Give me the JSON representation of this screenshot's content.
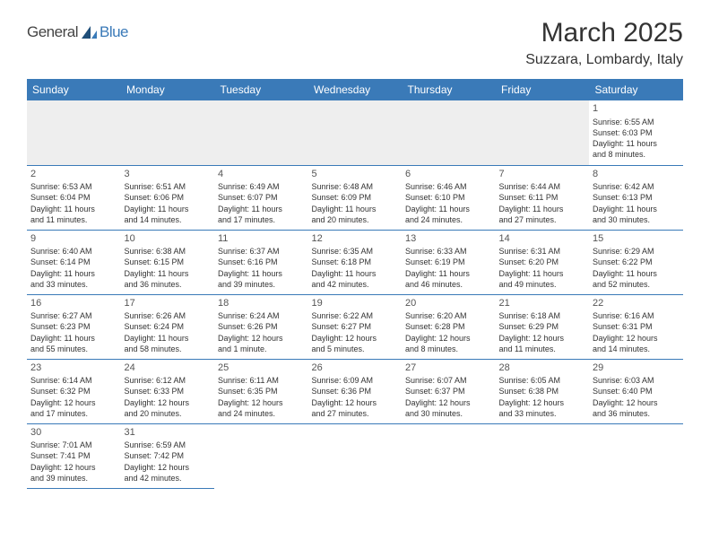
{
  "brand": {
    "part1": "General",
    "part2": "Blue"
  },
  "title": "March 2025",
  "location": "Suzzara, Lombardy, Italy",
  "colors": {
    "header_bg": "#3a7ab8",
    "header_fg": "#ffffff",
    "grid_line": "#3a7ab8",
    "empty_bg": "#eeeeee"
  },
  "columns": [
    "Sunday",
    "Monday",
    "Tuesday",
    "Wednesday",
    "Thursday",
    "Friday",
    "Saturday"
  ],
  "weeks": [
    [
      null,
      null,
      null,
      null,
      null,
      null,
      {
        "n": "1",
        "sr": "Sunrise: 6:55 AM",
        "ss": "Sunset: 6:03 PM",
        "d1": "Daylight: 11 hours",
        "d2": "and 8 minutes."
      }
    ],
    [
      {
        "n": "2",
        "sr": "Sunrise: 6:53 AM",
        "ss": "Sunset: 6:04 PM",
        "d1": "Daylight: 11 hours",
        "d2": "and 11 minutes."
      },
      {
        "n": "3",
        "sr": "Sunrise: 6:51 AM",
        "ss": "Sunset: 6:06 PM",
        "d1": "Daylight: 11 hours",
        "d2": "and 14 minutes."
      },
      {
        "n": "4",
        "sr": "Sunrise: 6:49 AM",
        "ss": "Sunset: 6:07 PM",
        "d1": "Daylight: 11 hours",
        "d2": "and 17 minutes."
      },
      {
        "n": "5",
        "sr": "Sunrise: 6:48 AM",
        "ss": "Sunset: 6:09 PM",
        "d1": "Daylight: 11 hours",
        "d2": "and 20 minutes."
      },
      {
        "n": "6",
        "sr": "Sunrise: 6:46 AM",
        "ss": "Sunset: 6:10 PM",
        "d1": "Daylight: 11 hours",
        "d2": "and 24 minutes."
      },
      {
        "n": "7",
        "sr": "Sunrise: 6:44 AM",
        "ss": "Sunset: 6:11 PM",
        "d1": "Daylight: 11 hours",
        "d2": "and 27 minutes."
      },
      {
        "n": "8",
        "sr": "Sunrise: 6:42 AM",
        "ss": "Sunset: 6:13 PM",
        "d1": "Daylight: 11 hours",
        "d2": "and 30 minutes."
      }
    ],
    [
      {
        "n": "9",
        "sr": "Sunrise: 6:40 AM",
        "ss": "Sunset: 6:14 PM",
        "d1": "Daylight: 11 hours",
        "d2": "and 33 minutes."
      },
      {
        "n": "10",
        "sr": "Sunrise: 6:38 AM",
        "ss": "Sunset: 6:15 PM",
        "d1": "Daylight: 11 hours",
        "d2": "and 36 minutes."
      },
      {
        "n": "11",
        "sr": "Sunrise: 6:37 AM",
        "ss": "Sunset: 6:16 PM",
        "d1": "Daylight: 11 hours",
        "d2": "and 39 minutes."
      },
      {
        "n": "12",
        "sr": "Sunrise: 6:35 AM",
        "ss": "Sunset: 6:18 PM",
        "d1": "Daylight: 11 hours",
        "d2": "and 42 minutes."
      },
      {
        "n": "13",
        "sr": "Sunrise: 6:33 AM",
        "ss": "Sunset: 6:19 PM",
        "d1": "Daylight: 11 hours",
        "d2": "and 46 minutes."
      },
      {
        "n": "14",
        "sr": "Sunrise: 6:31 AM",
        "ss": "Sunset: 6:20 PM",
        "d1": "Daylight: 11 hours",
        "d2": "and 49 minutes."
      },
      {
        "n": "15",
        "sr": "Sunrise: 6:29 AM",
        "ss": "Sunset: 6:22 PM",
        "d1": "Daylight: 11 hours",
        "d2": "and 52 minutes."
      }
    ],
    [
      {
        "n": "16",
        "sr": "Sunrise: 6:27 AM",
        "ss": "Sunset: 6:23 PM",
        "d1": "Daylight: 11 hours",
        "d2": "and 55 minutes."
      },
      {
        "n": "17",
        "sr": "Sunrise: 6:26 AM",
        "ss": "Sunset: 6:24 PM",
        "d1": "Daylight: 11 hours",
        "d2": "and 58 minutes."
      },
      {
        "n": "18",
        "sr": "Sunrise: 6:24 AM",
        "ss": "Sunset: 6:26 PM",
        "d1": "Daylight: 12 hours",
        "d2": "and 1 minute."
      },
      {
        "n": "19",
        "sr": "Sunrise: 6:22 AM",
        "ss": "Sunset: 6:27 PM",
        "d1": "Daylight: 12 hours",
        "d2": "and 5 minutes."
      },
      {
        "n": "20",
        "sr": "Sunrise: 6:20 AM",
        "ss": "Sunset: 6:28 PM",
        "d1": "Daylight: 12 hours",
        "d2": "and 8 minutes."
      },
      {
        "n": "21",
        "sr": "Sunrise: 6:18 AM",
        "ss": "Sunset: 6:29 PM",
        "d1": "Daylight: 12 hours",
        "d2": "and 11 minutes."
      },
      {
        "n": "22",
        "sr": "Sunrise: 6:16 AM",
        "ss": "Sunset: 6:31 PM",
        "d1": "Daylight: 12 hours",
        "d2": "and 14 minutes."
      }
    ],
    [
      {
        "n": "23",
        "sr": "Sunrise: 6:14 AM",
        "ss": "Sunset: 6:32 PM",
        "d1": "Daylight: 12 hours",
        "d2": "and 17 minutes."
      },
      {
        "n": "24",
        "sr": "Sunrise: 6:12 AM",
        "ss": "Sunset: 6:33 PM",
        "d1": "Daylight: 12 hours",
        "d2": "and 20 minutes."
      },
      {
        "n": "25",
        "sr": "Sunrise: 6:11 AM",
        "ss": "Sunset: 6:35 PM",
        "d1": "Daylight: 12 hours",
        "d2": "and 24 minutes."
      },
      {
        "n": "26",
        "sr": "Sunrise: 6:09 AM",
        "ss": "Sunset: 6:36 PM",
        "d1": "Daylight: 12 hours",
        "d2": "and 27 minutes."
      },
      {
        "n": "27",
        "sr": "Sunrise: 6:07 AM",
        "ss": "Sunset: 6:37 PM",
        "d1": "Daylight: 12 hours",
        "d2": "and 30 minutes."
      },
      {
        "n": "28",
        "sr": "Sunrise: 6:05 AM",
        "ss": "Sunset: 6:38 PM",
        "d1": "Daylight: 12 hours",
        "d2": "and 33 minutes."
      },
      {
        "n": "29",
        "sr": "Sunrise: 6:03 AM",
        "ss": "Sunset: 6:40 PM",
        "d1": "Daylight: 12 hours",
        "d2": "and 36 minutes."
      }
    ],
    [
      {
        "n": "30",
        "sr": "Sunrise: 7:01 AM",
        "ss": "Sunset: 7:41 PM",
        "d1": "Daylight: 12 hours",
        "d2": "and 39 minutes."
      },
      {
        "n": "31",
        "sr": "Sunrise: 6:59 AM",
        "ss": "Sunset: 7:42 PM",
        "d1": "Daylight: 12 hours",
        "d2": "and 42 minutes."
      },
      null,
      null,
      null,
      null,
      null
    ]
  ]
}
